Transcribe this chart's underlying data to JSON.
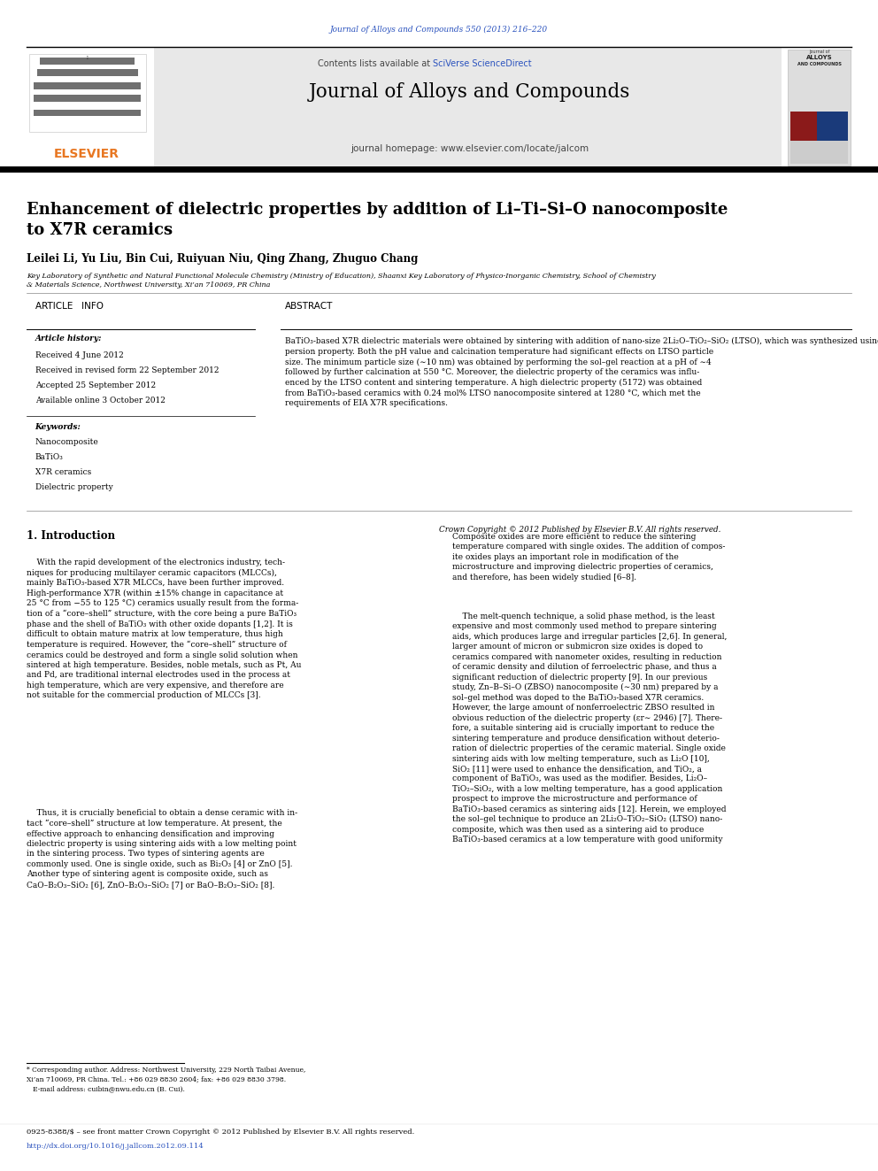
{
  "page_width": 9.92,
  "page_height": 13.23,
  "bg_color": "#ffffff",
  "journal_ref_text": "Journal of Alloys and Compounds 550 (2013) 216–220",
  "journal_ref_color": "#2a52be",
  "header_bg": "#e8e8e8",
  "header_journal_name": "Journal of Alloys and Compounds",
  "header_contents_text": "Contents lists available at ",
  "header_sciverse": "SciVerse ScienceDirect",
  "header_homepage": "journal homepage: www.elsevier.com/locate/jalcom",
  "elsevier_color": "#e87722",
  "title_text": "Enhancement of dielectric properties by addition of Li–Ti–Si–O nanocomposite\nto X7R ceramics",
  "authors_text": "Leilei Li, Yu Liu, Bin Cui*, Ruiyuan Niu, Qing Zhang, Zhuguo Chang",
  "affiliation_text": "Key Laboratory of Synthetic and Natural Functional Molecule Chemistry (Ministry of Education), Shaanxi Key Laboratory of Physico-Inorganic Chemistry, School of Chemistry\n& Materials Science, Northwest University, Xi’an 710069, PR China",
  "article_info_title": "ARTICLE   INFO",
  "abstract_title": "ABSTRACT",
  "article_history_label": "Article history:",
  "received_text": "Received 4 June 2012",
  "revised_text": "Received in revised form 22 September 2012",
  "accepted_text": "Accepted 25 September 2012",
  "online_text": "Available online 3 October 2012",
  "keywords_label": "Keywords:",
  "keywords": [
    "Nanocomposite",
    "BaTiO₃",
    "X7R ceramics",
    "Dielectric property"
  ],
  "abstract_body": "BaTiO₃-based X7R dielectric materials were obtained by sintering with addition of nano-size 2Li₂O–TiO₂–SiO₂ (LTSO), which was synthesized using a sol–gel method, and showed high activity and great dis-\npersion property. Both the pH value and calcination temperature had significant effects on LTSO particle\nsize. The minimum particle size (∼10 nm) was obtained by performing the sol–gel reaction at a pH of ∼4\nfollowed by further calcination at 550 °C. Moreover, the dielectric property of the ceramics was influ-\nenced by the LTSO content and sintering temperature. A high dielectric property (5172) was obtained\nfrom BaTiO₃-based ceramics with 0.24 mol% LTSO nanocomposite sintered at 1280 °C, which met the\nrequirements of EIA X7R specifications.",
  "copyright_text": "Crown Copyright © 2012 Published by Elsevier B.V. All rights reserved.",
  "intro_heading": "1. Introduction",
  "intro_col1_p1": "    With the rapid development of the electronics industry, tech-\nniques for producing multilayer ceramic capacitors (MLCCs),\nmainly BaTiO₃-based X7R MLCCs, have been further improved.\nHigh-performance X7R (within ±15% change in capacitance at\n25 °C from −55 to 125 °C) ceramics usually result from the forma-\ntion of a “core–shell” structure, with the core being a pure BaTiO₃\nphase and the shell of BaTiO₃ with other oxide dopants [1,2]. It is\ndifficult to obtain mature matrix at low temperature, thus high\ntemperature is required. However, the “core–shell” structure of\nceramics could be destroyed and form a single solid solution when\nsintered at high temperature. Besides, noble metals, such as Pt, Au\nand Pd, are traditional internal electrodes used in the process at\nhigh temperature, which are very expensive, and therefore are\nnot suitable for the commercial production of MLCCs [3].",
  "intro_col1_p2": "    Thus, it is crucially beneficial to obtain a dense ceramic with in-\ntact “core–shell” structure at low temperature. At present, the\neffective approach to enhancing densification and improving\ndielectric property is using sintering aids with a low melting point\nin the sintering process. Two types of sintering agents are\ncommonly used. One is single oxide, such as Bi₂O₃ [4] or ZnO [5].\nAnother type of sintering agent is composite oxide, such as\nCaO–B₂O₃–SiO₂ [6], ZnO–B₂O₃–SiO₂ [7] or BaO–B₂O₃–SiO₂ [8].",
  "intro_col2_p1": "Composite oxides are more efficient to reduce the sintering\ntemperature compared with single oxides. The addition of compos-\nite oxides plays an important role in modification of the\nmicrostructure and improving dielectric properties of ceramics,\nand therefore, has been widely studied [6–8].",
  "intro_col2_p2": "    The melt-quench technique, a solid phase method, is the least\nexpensive and most commonly used method to prepare sintering\naids, which produces large and irregular particles [2,6]. In general,\nlarger amount of micron or submicron size oxides is doped to\nceramics compared with nanometer oxides, resulting in reduction\nof ceramic density and dilution of ferroelectric phase, and thus a\nsignificant reduction of dielectric property [9]. In our previous\nstudy, Zn–B–Si–O (ZBSO) nanocomposite (∼30 nm) prepared by a\nsol–gel method was doped to the BaTiO₃-based X7R ceramics.\nHowever, the large amount of nonferroelectric ZBSO resulted in\nobvious reduction of the dielectric property (εr∼ 2946) [7]. There-\nfore, a suitable sintering aid is crucially important to reduce the\nsintering temperature and produce densification without deterio-\nration of dielectric properties of the ceramic material. Single oxide\nsintering aids with low melting temperature, such as Li₂O [10],\nSiO₂ [11] were used to enhance the densification, and TiO₂, a\ncomponent of BaTiO₃, was used as the modifier. Besides, Li₂O–\nTiO₂–SiO₂, with a low melting temperature, has a good application\nprospect to improve the microstructure and performance of\nBaTiO₃-based ceramics as sintering aids [12]. Herein, we employed\nthe sol–gel technique to produce an 2Li₂O–TiO₂–SiO₂ (LTSO) nano-\ncomposite, which was then used as a sintering aid to produce\nBaTiO₃-based ceramics at a low temperature with good uniformity",
  "footnote_line1": "* Corresponding author. Address: Northwest University, 229 North Taibai Avenue,",
  "footnote_line2": "Xi’an 710069, PR China. Tel.: +86 029 8830 2604; fax: +86 029 8830 3798.",
  "footnote_line3": "   E-mail address: cuibin@nwu.edu.cn (B. Cui).",
  "bottom_copyright": "0925-8388/$ – see front matter Crown Copyright © 2012 Published by Elsevier B.V. All rights reserved.",
  "doi_text": "http://dx.doi.org/10.1016/j.jallcom.2012.09.114",
  "link_color": "#2a52be",
  "text_color": "#000000",
  "separator_color": "#000000"
}
